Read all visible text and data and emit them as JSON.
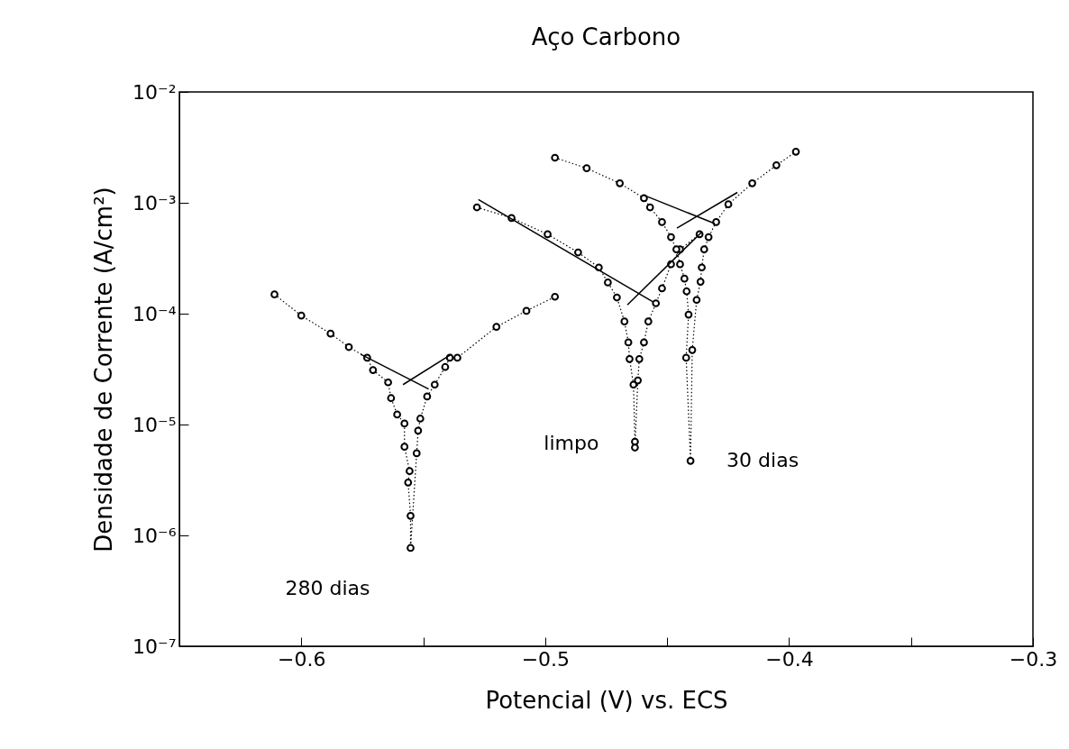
{
  "chart_data": {
    "type": "line",
    "title": "Aço Carbono",
    "xlabel": "Potencial (V) vs. ECS",
    "ylabel": "Densidade de Corrente (A/cm²)",
    "log": "y",
    "xlim": [
      -0.65,
      -0.3
    ],
    "xticks": [
      -0.6,
      {
        "value": -0.55,
        "label": null
      },
      -0.5,
      {
        "value": -0.45,
        "label": null
      },
      -0.4,
      {
        "value": -0.35,
        "label": null
      },
      -0.3
    ],
    "ylim": [
      1e-07,
      0.01
    ],
    "yticks": [
      {
        "value": 1e-07,
        "label": "10⁻⁷"
      },
      {
        "value": 1e-06,
        "label": "10⁻⁶"
      },
      {
        "value": 1e-05,
        "label": "10⁻⁵"
      },
      {
        "value": 0.0001,
        "label": "10⁻⁴"
      },
      {
        "value": 0.001,
        "label": "10⁻³"
      },
      {
        "value": 0.01,
        "label": "10⁻²"
      }
    ],
    "series": [
      {
        "name": "280 dias",
        "color": "#000000",
        "marker": "circle",
        "line_style": "dotted",
        "x": [
          -0.611,
          -0.6,
          -0.588,
          -0.5805,
          -0.573,
          -0.5706,
          -0.5644,
          -0.5632,
          -0.5607,
          -0.5577,
          -0.5577,
          -0.5556,
          -0.5562,
          -0.5552,
          -0.5552,
          -0.5527,
          -0.5521,
          -0.5512,
          -0.5484,
          -0.5453,
          -0.541,
          -0.5391,
          -0.536,
          -0.52,
          -0.5077,
          -0.496
        ],
        "values": [
          0.000149,
          9.6e-05,
          6.6e-05,
          5e-05,
          4e-05,
          3.1e-05,
          2.4e-05,
          1.73e-05,
          1.23e-05,
          1.02e-05,
          6.3e-06,
          3.8e-06,
          3e-06,
          1.5e-06,
          7.7e-07,
          5.5e-06,
          8.8e-06,
          1.13e-05,
          1.79e-05,
          2.29e-05,
          3.3e-05,
          4e-05,
          4e-05,
          7.6e-05,
          0.000106,
          0.000142
        ]
      },
      {
        "name": "limpo",
        "color": "#000000",
        "marker": "circle",
        "line_style": "dotted",
        "x": [
          -0.528,
          -0.5138,
          -0.499,
          -0.4865,
          -0.478,
          -0.4743,
          -0.4706,
          -0.4675,
          -0.4659,
          -0.4654,
          -0.4638,
          -0.4632,
          -0.4632,
          -0.462,
          -0.4614,
          -0.4595,
          -0.4577,
          -0.4546,
          -0.4521,
          -0.4484,
          -0.4447,
          -0.4367
        ],
        "values": [
          0.00091,
          0.00073,
          0.00052,
          0.000357,
          0.000261,
          0.000191,
          0.00014,
          8.5e-05,
          5.5e-05,
          3.9e-05,
          2.29e-05,
          7e-06,
          6.2e-06,
          2.5e-05,
          3.9e-05,
          5.5e-05,
          8.5e-05,
          0.000124,
          0.000169,
          0.000279,
          0.00038,
          0.00052
        ]
      },
      {
        "name": "30 dias",
        "color": "#000000",
        "marker": "circle",
        "line_style": "dotted",
        "x": [
          -0.496,
          -0.483,
          -0.4694,
          -0.4595,
          -0.457,
          -0.4521,
          -0.4484,
          -0.4462,
          -0.4447,
          -0.4429,
          -0.442,
          -0.4412,
          -0.4422,
          -0.4404,
          -0.4397,
          -0.4379,
          -0.4363,
          -0.4358,
          -0.4348,
          -0.433,
          -0.4299,
          -0.4249,
          -0.4151,
          -0.4052,
          -0.3972
        ],
        "values": [
          0.00255,
          0.00205,
          0.0015,
          0.0011,
          0.00091,
          0.00067,
          0.00049,
          0.00038,
          0.000279,
          0.000207,
          0.000159,
          9.8e-05,
          4e-05,
          4.7e-06,
          4.7e-05,
          0.000133,
          0.000194,
          0.000261,
          0.00038,
          0.00049,
          0.00067,
          0.00097,
          0.0015,
          0.00218,
          0.00289
        ]
      },
      {
        "type": "line",
        "color": "#000000",
        "marker": "none",
        "line_style": "solid",
        "x": [
          -0.5756,
          -0.5478
        ],
        "values": [
          4.3e-05,
          2.09e-05
        ]
      },
      {
        "type": "line",
        "color": "#000000",
        "marker": "none",
        "line_style": "solid",
        "x": [
          -0.5583,
          -0.5385
        ],
        "values": [
          2.29e-05,
          4.3e-05
        ]
      },
      {
        "type": "line",
        "color": "#000000",
        "marker": "none",
        "line_style": "solid",
        "x": [
          -0.5274,
          -0.4558
        ],
        "values": [
          0.00107,
          0.000128
        ]
      },
      {
        "type": "line",
        "color": "#000000",
        "marker": "none",
        "line_style": "solid",
        "x": [
          -0.4663,
          -0.436
        ],
        "values": [
          0.00012,
          0.00054
        ]
      },
      {
        "type": "line",
        "color": "#000000",
        "marker": "none",
        "line_style": "solid",
        "x": [
          -0.4595,
          -0.4305
        ],
        "values": [
          0.00117,
          0.00065
        ]
      },
      {
        "type": "line",
        "color": "#000000",
        "marker": "none",
        "line_style": "solid",
        "x": [
          -0.446,
          -0.4212
        ],
        "values": [
          0.00059,
          0.00124
        ]
      }
    ]
  }
}
